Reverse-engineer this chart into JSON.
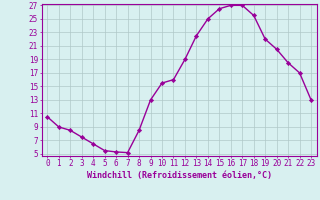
{
  "x": [
    0,
    1,
    2,
    3,
    4,
    5,
    6,
    7,
    8,
    9,
    10,
    11,
    12,
    13,
    14,
    15,
    16,
    17,
    18,
    19,
    20,
    21,
    22,
    23
  ],
  "y": [
    10.5,
    9.0,
    8.5,
    7.5,
    6.5,
    5.5,
    5.3,
    5.2,
    8.5,
    13.0,
    15.5,
    16.0,
    19.0,
    22.5,
    25.0,
    26.5,
    27.0,
    27.0,
    25.5,
    22.0,
    20.5,
    18.5,
    17.0,
    13.0
  ],
  "line_color": "#990099",
  "marker": "D",
  "markersize": 2.2,
  "linewidth": 1.0,
  "xlabel": "Windchill (Refroidissement éolien,°C)",
  "xlabel_fontsize": 6.0,
  "ylim": [
    5,
    27
  ],
  "xlim": [
    -0.5,
    23.5
  ],
  "yticks": [
    5,
    7,
    9,
    11,
    13,
    15,
    17,
    19,
    21,
    23,
    25,
    27
  ],
  "xticks": [
    0,
    1,
    2,
    3,
    4,
    5,
    6,
    7,
    8,
    9,
    10,
    11,
    12,
    13,
    14,
    15,
    16,
    17,
    18,
    19,
    20,
    21,
    22,
    23
  ],
  "grid_color": "#b0c8c8",
  "background_color": "#d8f0f0",
  "tick_fontsize": 5.5,
  "tick_color": "#990099",
  "axis_color": "#990099"
}
